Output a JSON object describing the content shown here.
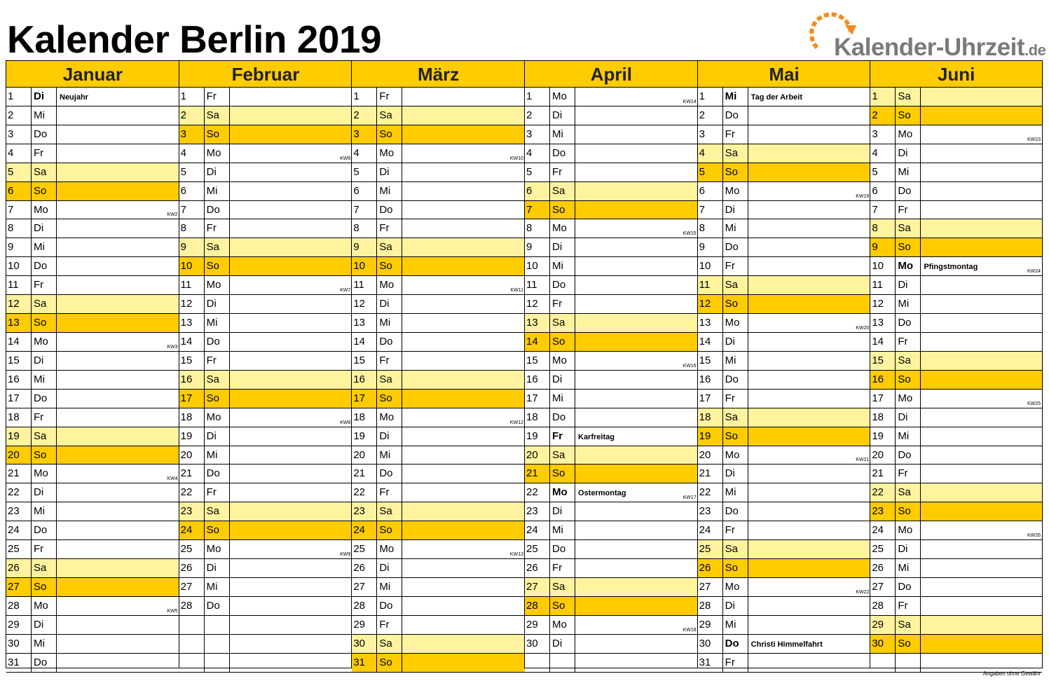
{
  "title": "Kalender Berlin 2019",
  "logo": {
    "text": "Kalender-Uhrzeit",
    "tld": ".de",
    "icon": "clock-arrow-icon"
  },
  "footer": "Angaben ohne Gewähr",
  "colors": {
    "saturday": "#fff3a0",
    "sunday": "#ffcc00",
    "header": "#ffcc00"
  },
  "months": [
    {
      "name": "Januar",
      "first_weekday": 1,
      "days": 31,
      "holidays": {
        "1": "Neujahr"
      },
      "kw": {
        "7": "KW2",
        "14": "KW3",
        "21": "KW4",
        "28": "KW5"
      }
    },
    {
      "name": "Februar",
      "first_weekday": 4,
      "days": 28,
      "holidays": {},
      "kw": {
        "4": "KW6",
        "11": "KW7",
        "18": "KW8",
        "25": "KW9"
      }
    },
    {
      "name": "März",
      "first_weekday": 4,
      "days": 31,
      "holidays": {},
      "kw": {
        "4": "KW10",
        "11": "KW11",
        "18": "KW12",
        "25": "KW13"
      }
    },
    {
      "name": "April",
      "first_weekday": 0,
      "days": 30,
      "holidays": {
        "19": "Karfreitag",
        "22": "Ostermontag"
      },
      "kw": {
        "1": "KW14",
        "8": "KW15",
        "15": "KW16",
        "22": "KW17",
        "29": "KW18"
      }
    },
    {
      "name": "Mai",
      "first_weekday": 2,
      "days": 31,
      "holidays": {
        "1": "Tag der Arbeit",
        "30": "Christi Himmelfahrt"
      },
      "kw": {
        "6": "KW19",
        "13": "KW20",
        "20": "KW21",
        "27": "KW22"
      }
    },
    {
      "name": "Juni",
      "first_weekday": 5,
      "days": 30,
      "holidays": {
        "10": "Pfingstmontag"
      },
      "kw": {
        "3": "KW23",
        "10": "KW24",
        "17": "KW25",
        "24": "KW26"
      }
    }
  ],
  "weekday_labels": [
    "Mo",
    "Di",
    "Mi",
    "Do",
    "Fr",
    "Sa",
    "So"
  ]
}
